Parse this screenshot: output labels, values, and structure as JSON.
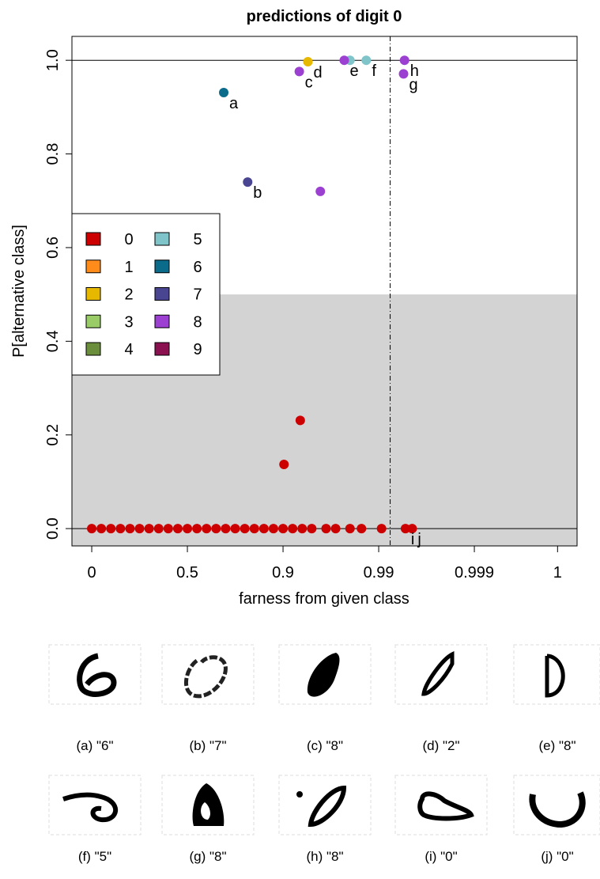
{
  "chart_data": {
    "type": "scatter",
    "title": "predictions of digit 0",
    "xlabel": "farness from given class",
    "ylabel": "P[alternative class]",
    "xlim": [
      -0.207,
      5.074
    ],
    "ylim": [
      -0.037,
      1.051
    ],
    "xticks": [
      {
        "value": 0,
        "label": "0"
      },
      {
        "value": 1,
        "label": "0.5"
      },
      {
        "value": 2,
        "label": "0.9"
      },
      {
        "value": 3,
        "label": "0.99"
      },
      {
        "value": 4,
        "label": "0.999"
      },
      {
        "value": 4.87,
        "label": "1"
      }
    ],
    "yticks": [
      {
        "value": 0,
        "label": "0.0"
      },
      {
        "value": 0.2,
        "label": "0.2"
      },
      {
        "value": 0.4,
        "label": "0.4"
      },
      {
        "value": 0.6,
        "label": "0.6"
      },
      {
        "value": 0.8,
        "label": "0.8"
      },
      {
        "value": 1,
        "label": "1.0"
      }
    ],
    "shaded_below": 0.5,
    "hlines": [
      0,
      1
    ],
    "vline": 3.12,
    "legend": "left",
    "series": [
      {
        "name": "0",
        "color": "#cc0000",
        "x": [
          3.28,
          3.35,
          2.01,
          2.18,
          0,
          0.1,
          0.2,
          0.3,
          0.4,
          0.5,
          0.6,
          0.7,
          0.8,
          0.9,
          1,
          1.1,
          1.2,
          1.3,
          1.4,
          1.5,
          1.6,
          1.7,
          1.8,
          1.9,
          2,
          2.1,
          2.2,
          2.3,
          2.45,
          2.55,
          2.7,
          2.82,
          3.03
        ],
        "values": [
          0,
          0,
          0.137,
          0.231,
          0,
          0,
          0,
          0,
          0,
          0,
          0,
          0,
          0,
          0,
          0,
          0,
          0,
          0,
          0,
          0,
          0,
          0,
          0,
          0,
          0,
          0,
          0,
          0,
          0,
          0,
          0,
          0,
          0
        ],
        "labels": [
          "i",
          "j",
          null,
          null,
          null,
          null,
          null,
          null,
          null,
          null,
          null,
          null,
          null,
          null,
          null,
          null,
          null,
          null,
          null,
          null,
          null,
          null,
          null,
          null,
          null,
          null,
          null,
          null,
          null,
          null,
          null,
          null,
          null
        ]
      },
      {
        "name": "1",
        "color": "#ff8c1a",
        "x": [],
        "values": [],
        "labels": []
      },
      {
        "name": "2",
        "color": "#e6b800",
        "x": [
          2.26
        ],
        "values": [
          0.997
        ],
        "labels": [
          "d"
        ]
      },
      {
        "name": "3",
        "color": "#99cc66",
        "x": [],
        "values": [],
        "labels": []
      },
      {
        "name": "4",
        "color": "#6b8e3d",
        "x": [],
        "values": [],
        "labels": []
      },
      {
        "name": "5",
        "color": "#7fc4c8",
        "x": [
          2.7,
          2.87
        ],
        "values": [
          1,
          1
        ],
        "labels": [
          null,
          "f"
        ]
      },
      {
        "name": "6",
        "color": "#0b6b8a",
        "x": [
          1.38
        ],
        "values": [
          0.931
        ],
        "labels": [
          "a"
        ]
      },
      {
        "name": "7",
        "color": "#4a4590",
        "x": [
          1.63
        ],
        "values": [
          0.74
        ],
        "labels": [
          "b"
        ]
      },
      {
        "name": "8",
        "color": "#9b40d0",
        "x": [
          2.17,
          2.64,
          3.27,
          3.26,
          2.39
        ],
        "values": [
          0.976,
          1,
          1,
          0.971,
          0.72
        ],
        "labels": [
          "c",
          "e",
          "h",
          "g",
          null
        ]
      },
      {
        "name": "9",
        "color": "#8b1050",
        "x": [],
        "values": [],
        "labels": []
      }
    ]
  },
  "gallery": {
    "captions": [
      "(a) \"6\"",
      "(b) \"7\"",
      "(c) \"8\"",
      "(d) \"2\"",
      "(e) \"8\"",
      "(f) \"5\"",
      "(g) \"8\"",
      "(h) \"8\"",
      "(i) \"0\"",
      "(j) \"0\""
    ]
  }
}
